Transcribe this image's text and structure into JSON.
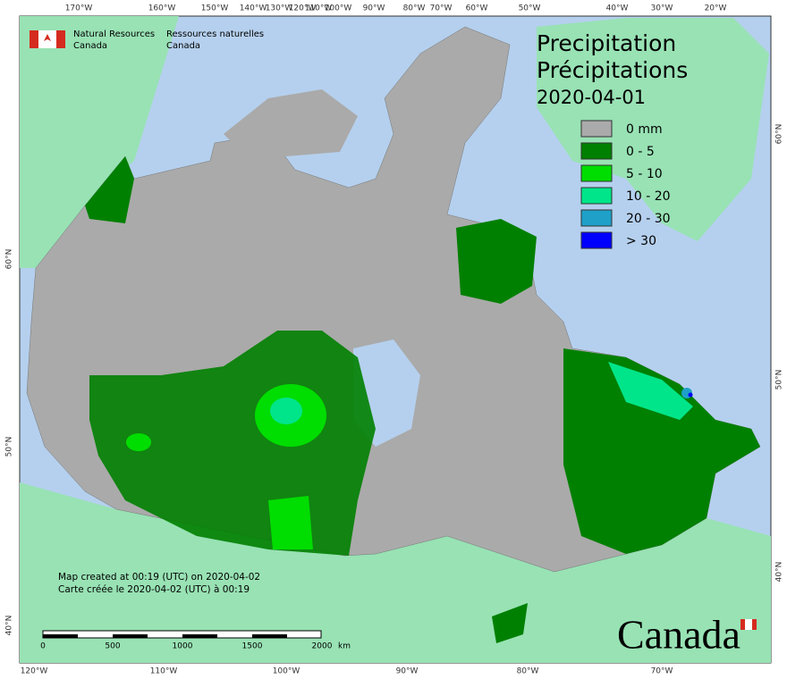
{
  "header": {
    "org_en_line1": "Natural Resources",
    "org_en_line2": "Canada",
    "org_fr_line1": "Ressources naturelles",
    "org_fr_line2": "Canada"
  },
  "title": {
    "en": "Precipitation",
    "fr": "Précipitations",
    "date": "2020-04-01"
  },
  "legend": [
    {
      "label": "0 mm",
      "color": "#aaaaaa"
    },
    {
      "label": "0 - 5",
      "color": "#008000"
    },
    {
      "label": "5 - 10",
      "color": "#00dd00"
    },
    {
      "label": "10 - 20",
      "color": "#00e58a"
    },
    {
      "label": "20 - 30",
      "color": "#1ea0c8"
    },
    {
      "label": "> 30",
      "color": "#0000ff"
    }
  ],
  "footer": {
    "created_en": "Map created at 00:19 (UTC) on 2020-04-02",
    "created_fr": "Carte créée le 2020-04-02 (UTC) à 00:19"
  },
  "scale_bar": {
    "ticks": [
      "0",
      "500",
      "1000",
      "1500",
      "2000"
    ],
    "unit": "km"
  },
  "graticule": {
    "top": [
      "170°W",
      "160°W",
      "150°W",
      "140°W",
      "130°W",
      "120°W",
      "110°W",
      "100°W",
      "90°W",
      "80°W",
      "70°W",
      "60°W",
      "50°W",
      "40°W",
      "30°W",
      "20°W"
    ],
    "bottom": [
      "120°W",
      "110°W",
      "100°W",
      "90°W",
      "80°W",
      "70°W"
    ],
    "left": [
      "60°N",
      "50°N",
      "40°N"
    ],
    "right": [
      "60°N",
      "50°N",
      "40°N"
    ]
  },
  "wordmark": "Canada"
}
